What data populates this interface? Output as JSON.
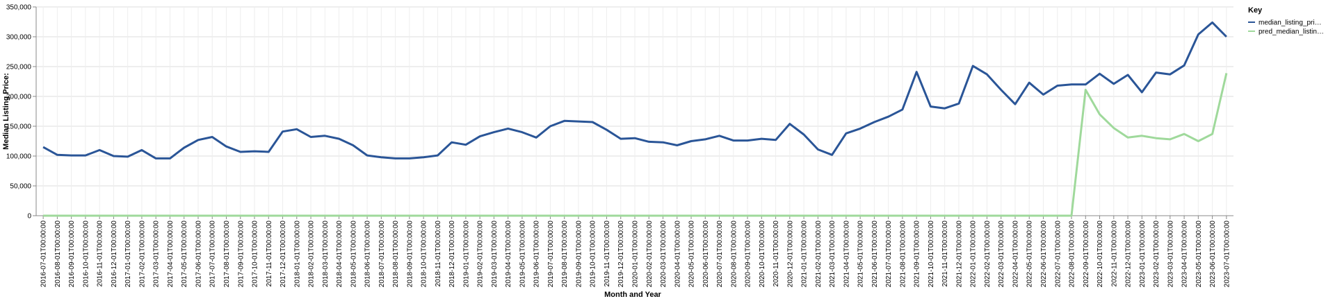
{
  "chart_data": {
    "type": "line",
    "xlabel": "Month and Year",
    "ylabel": "Median Listing Price:",
    "ylim": [
      0,
      350000
    ],
    "y_ticks": [
      "0",
      "50,000",
      "100,000",
      "150,000",
      "200,000",
      "250,000",
      "300,000",
      "350,000"
    ],
    "grid": true,
    "legend": {
      "title": "Key",
      "position": "top-right"
    },
    "categories": [
      "2016-07-01T00:00:00",
      "2016-08-01T00:00:00",
      "2016-09-01T00:00:00",
      "2016-10-01T00:00:00",
      "2016-11-01T00:00:00",
      "2016-12-01T00:00:00",
      "2017-01-01T00:00:00",
      "2017-02-01T00:00:00",
      "2017-03-01T00:00:00",
      "2017-04-01T00:00:00",
      "2017-05-01T00:00:00",
      "2017-06-01T00:00:00",
      "2017-07-01T00:00:00",
      "2017-08-01T00:00:00",
      "2017-09-01T00:00:00",
      "2017-10-01T00:00:00",
      "2017-11-01T00:00:00",
      "2017-12-01T00:00:00",
      "2018-01-01T00:00:00",
      "2018-02-01T00:00:00",
      "2018-03-01T00:00:00",
      "2018-04-01T00:00:00",
      "2018-05-01T00:00:00",
      "2018-06-01T00:00:00",
      "2018-07-01T00:00:00",
      "2018-08-01T00:00:00",
      "2018-09-01T00:00:00",
      "2018-10-01T00:00:00",
      "2018-11-01T00:00:00",
      "2018-12-01T00:00:00",
      "2019-01-01T00:00:00",
      "2019-02-01T00:00:00",
      "2019-03-01T00:00:00",
      "2019-04-01T00:00:00",
      "2019-05-01T00:00:00",
      "2019-06-01T00:00:00",
      "2019-07-01T00:00:00",
      "2019-08-01T00:00:00",
      "2019-09-01T00:00:00",
      "2019-10-01T00:00:00",
      "2019-11-01T00:00:00",
      "2019-12-01T00:00:00",
      "2020-01-01T00:00:00",
      "2020-02-01T00:00:00",
      "2020-03-01T00:00:00",
      "2020-04-01T00:00:00",
      "2020-05-01T00:00:00",
      "2020-06-01T00:00:00",
      "2020-07-01T00:00:00",
      "2020-08-01T00:00:00",
      "2020-09-01T00:00:00",
      "2020-10-01T00:00:00",
      "2020-11-01T00:00:00",
      "2020-12-01T00:00:00",
      "2021-01-01T00:00:00",
      "2021-02-01T00:00:00",
      "2021-03-01T00:00:00",
      "2021-04-01T00:00:00",
      "2021-05-01T00:00:00",
      "2021-06-01T00:00:00",
      "2021-07-01T00:00:00",
      "2021-08-01T00:00:00",
      "2021-09-01T00:00:00",
      "2021-10-01T00:00:00",
      "2021-11-01T00:00:00",
      "2021-12-01T00:00:00",
      "2022-01-01T00:00:00",
      "2022-02-01T00:00:00",
      "2022-03-01T00:00:00",
      "2022-04-01T00:00:00",
      "2022-05-01T00:00:00",
      "2022-06-01T00:00:00",
      "2022-07-01T00:00:00",
      "2022-08-01T00:00:00",
      "2022-09-01T00:00:00",
      "2022-10-01T00:00:00",
      "2022-11-01T00:00:00",
      "2022-12-01T00:00:00",
      "2023-01-01T00:00:00",
      "2023-02-01T00:00:00",
      "2023-03-01T00:00:00",
      "2023-04-01T00:00:00",
      "2023-05-01T00:00:00",
      "2023-06-01T00:00:00",
      "2023-07-01T00:00:00"
    ],
    "series": [
      {
        "name": "median_listing_pri…",
        "color": "#2a5597",
        "values": [
          115000,
          102000,
          101000,
          101000,
          110000,
          100000,
          99000,
          110000,
          96000,
          96000,
          114000,
          127000,
          132000,
          116000,
          107000,
          108000,
          107000,
          141000,
          145000,
          132000,
          134000,
          129000,
          118000,
          101000,
          98000,
          96000,
          96000,
          98000,
          101000,
          123000,
          119000,
          133000,
          140000,
          146000,
          140000,
          131000,
          150000,
          159000,
          158000,
          157000,
          144000,
          129000,
          130000,
          124000,
          123000,
          118000,
          125000,
          128000,
          134000,
          126000,
          126000,
          129000,
          127000,
          154000,
          136000,
          111000,
          102000,
          138000,
          146000,
          157000,
          166000,
          178000,
          241000,
          183000,
          180000,
          188000,
          251000,
          237000,
          211000,
          187000,
          223000,
          203000,
          218000,
          220000,
          220000,
          238000,
          221000,
          236000,
          207000,
          240000,
          237000,
          252000,
          304000,
          324000,
          300000
        ]
      },
      {
        "name": "pred_median_listin…",
        "color": "#9fd99b",
        "values": [
          0,
          0,
          0,
          0,
          0,
          0,
          0,
          0,
          0,
          0,
          0,
          0,
          0,
          0,
          0,
          0,
          0,
          0,
          0,
          0,
          0,
          0,
          0,
          0,
          0,
          0,
          0,
          0,
          0,
          0,
          0,
          0,
          0,
          0,
          0,
          0,
          0,
          0,
          0,
          0,
          0,
          0,
          0,
          0,
          0,
          0,
          0,
          0,
          0,
          0,
          0,
          0,
          0,
          0,
          0,
          0,
          0,
          0,
          0,
          0,
          0,
          0,
          0,
          0,
          0,
          0,
          0,
          0,
          0,
          0,
          0,
          0,
          0,
          0,
          211000,
          170000,
          147000,
          131000,
          134000,
          130000,
          128000,
          137000,
          125000,
          137000,
          239000
        ]
      }
    ]
  }
}
